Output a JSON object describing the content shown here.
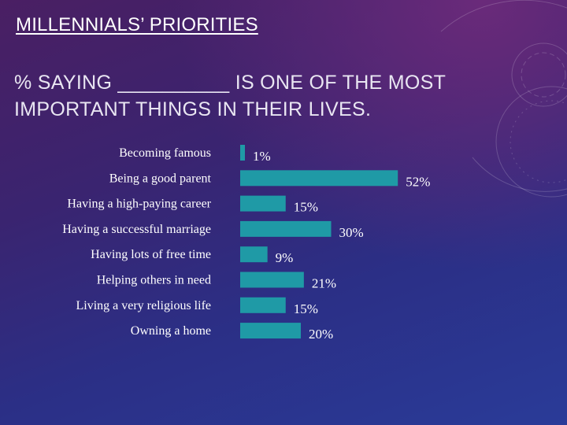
{
  "slide": {
    "title": "MILLENNIALS’ PRIORITIES",
    "subtitle": "% SAYING __________ IS ONE OF THE MOST IMPORTANT THINGS IN THEIR LIVES."
  },
  "colors": {
    "bar": "#1f9aa6",
    "text": "#ffffff"
  },
  "chart_data": {
    "type": "bar",
    "orientation": "horizontal",
    "categories": [
      "Becoming famous",
      "Being a good parent",
      "Having a high-paying career",
      "Having a successful marriage",
      "Having lots of free time",
      "Helping others in need",
      "Living a very religious life",
      "Owning a home"
    ],
    "values": [
      1,
      52,
      15,
      30,
      9,
      21,
      15,
      20
    ],
    "value_labels": [
      "1%",
      "52%",
      "15%",
      "30%",
      "9%",
      "21%",
      "15%",
      "20%"
    ],
    "xlim": [
      0,
      52
    ],
    "grid": false,
    "legend": false
  }
}
